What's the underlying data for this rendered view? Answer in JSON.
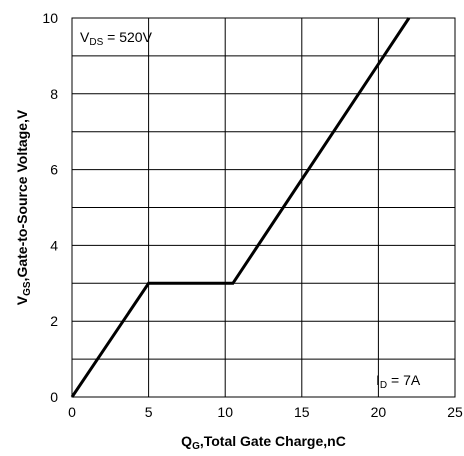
{
  "chart_data": {
    "type": "line",
    "title": "",
    "xlabel": {
      "main": "Q",
      "sub": "G",
      "rest": ",Total Gate Charge,nC"
    },
    "ylabel": {
      "main": "V",
      "sub": "GS",
      "rest": ",Gate-to-Source Voltage,V"
    },
    "xlim": [
      0,
      25
    ],
    "ylim": [
      0,
      10
    ],
    "xticks": [
      0,
      5,
      10,
      15,
      20,
      25
    ],
    "yticks": [
      0,
      2,
      4,
      6,
      8,
      10
    ],
    "grid": true,
    "series": [
      {
        "x": [
          0,
          5,
          10.5,
          22
        ],
        "y": [
          0,
          3,
          3,
          10
        ]
      }
    ],
    "annotations": [
      {
        "main": "V",
        "sub": "DS",
        "rest": " = 520V",
        "position": "top-left"
      },
      {
        "main": "I",
        "sub": "D",
        "rest": " = 7A",
        "position": "bottom-right"
      }
    ]
  }
}
